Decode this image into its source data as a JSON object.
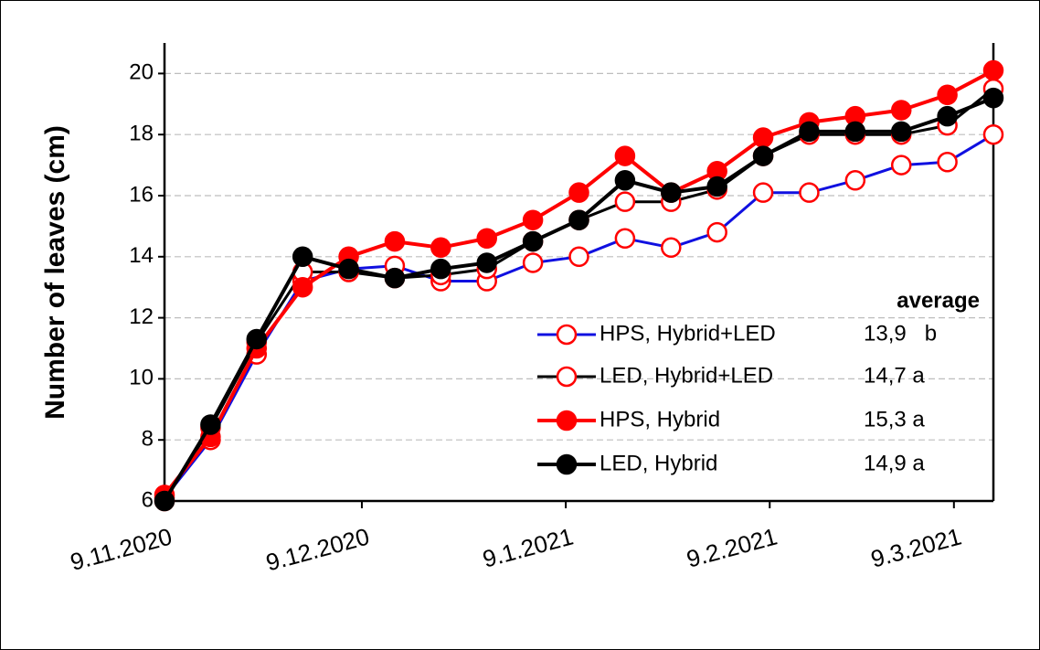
{
  "chart_data": {
    "type": "line",
    "y_label": "Number of leaves (cm)",
    "x": [
      "2020-11-09",
      "2020-11-16",
      "2020-11-23",
      "2020-11-30",
      "2020-12-07",
      "2020-12-14",
      "2020-12-21",
      "2020-12-28",
      "2021-01-04",
      "2021-01-11",
      "2021-01-18",
      "2021-01-25",
      "2021-02-01",
      "2021-02-08",
      "2021-02-15",
      "2021-02-22",
      "2021-03-01",
      "2021-03-08",
      "2021-03-15"
    ],
    "xlim": [
      "2020-11-09",
      "2021-03-15"
    ],
    "xticks": [
      {
        "value": "2020-11-09",
        "label": "9.11.2020"
      },
      {
        "value": "2020-12-09",
        "label": "9.12.2020"
      },
      {
        "value": "2021-01-09",
        "label": "9.1.2021"
      },
      {
        "value": "2021-02-09",
        "label": "9.2.2021"
      },
      {
        "value": "2021-03-09",
        "label": "9.3.2021"
      }
    ],
    "ylim": [
      6,
      21
    ],
    "yticks": [
      6,
      8,
      10,
      12,
      14,
      16,
      18,
      20
    ],
    "grid": true,
    "legend_title": "average",
    "series": [
      {
        "name": "HPS, Hybrid+LED",
        "average": "13,9   b",
        "color": "#1010e0",
        "marker_color": "#ff0000",
        "marker_filled": false,
        "line_width": 3,
        "values": [
          6.1,
          8.0,
          10.8,
          13.2,
          13.6,
          13.7,
          13.2,
          13.2,
          13.8,
          14.0,
          14.6,
          14.3,
          14.8,
          16.1,
          16.1,
          16.5,
          17.0,
          17.1,
          18.0
        ]
      },
      {
        "name": "LED, Hybrid+LED",
        "average": "14,7 a",
        "color": "#000000",
        "marker_color": "#ff0000",
        "marker_filled": false,
        "line_width": 3,
        "values": [
          6.0,
          8.4,
          11.2,
          13.5,
          13.5,
          13.3,
          13.4,
          13.6,
          14.5,
          15.2,
          15.8,
          15.8,
          16.2,
          17.3,
          18.0,
          18.0,
          18.0,
          18.3,
          19.5
        ]
      },
      {
        "name": "HPS, Hybrid",
        "average": "15,3 a",
        "color": "#ff0000",
        "marker_color": "#ff0000",
        "marker_filled": true,
        "line_width": 4,
        "values": [
          6.2,
          8.1,
          11.0,
          13.0,
          14.0,
          14.5,
          14.3,
          14.6,
          15.2,
          16.1,
          17.3,
          16.1,
          16.8,
          17.9,
          18.4,
          18.6,
          18.8,
          19.3,
          20.1
        ]
      },
      {
        "name": "LED, Hybrid",
        "average": "14,9 a",
        "color": "#000000",
        "marker_color": "#000000",
        "marker_filled": true,
        "line_width": 4,
        "values": [
          6.0,
          8.5,
          11.3,
          14.0,
          13.6,
          13.3,
          13.6,
          13.8,
          14.5,
          15.2,
          16.5,
          16.1,
          16.3,
          17.3,
          18.1,
          18.1,
          18.1,
          18.6,
          19.2
        ]
      }
    ]
  }
}
